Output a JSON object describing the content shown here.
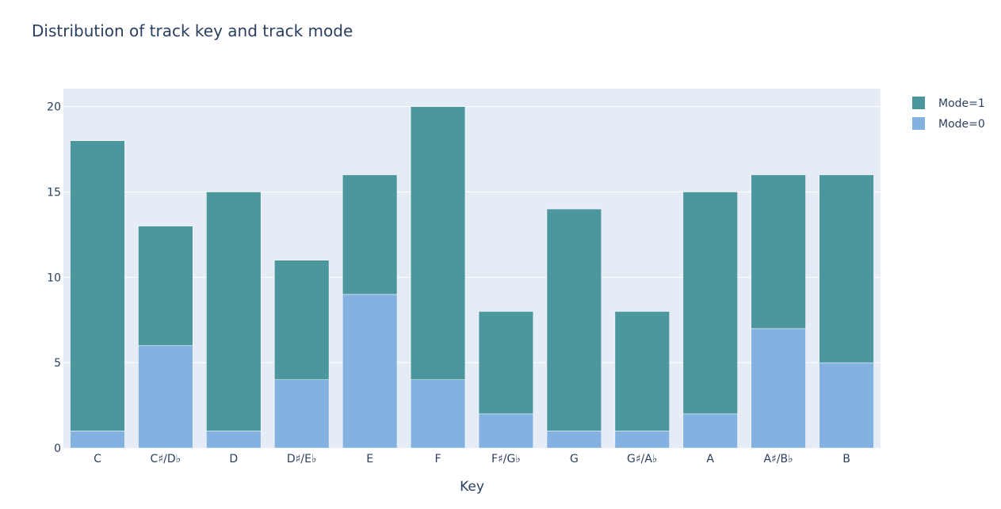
{
  "chart_data": {
    "type": "bar",
    "stacked": true,
    "title": "Distribution of track key and track mode",
    "xlabel": "Key",
    "ylabel": "",
    "categories": [
      "C",
      "C♯/D♭",
      "D",
      "D♯/E♭",
      "E",
      "F",
      "F♯/G♭",
      "G",
      "G♯/A♭",
      "A",
      "A♯/B♭",
      "B"
    ],
    "series": [
      {
        "name": "Mode=0",
        "color": "#83b2e1",
        "values": [
          1,
          6,
          1,
          4,
          9,
          4,
          2,
          1,
          1,
          2,
          7,
          5
        ]
      },
      {
        "name": "Mode=1",
        "color": "#4c979d",
        "values": [
          17,
          7,
          14,
          7,
          7,
          16,
          6,
          13,
          7,
          13,
          9,
          11
        ]
      }
    ],
    "legend_order": [
      "Mode=1",
      "Mode=0"
    ],
    "yticks": [
      0,
      5,
      10,
      15,
      20
    ],
    "ylim": [
      0,
      21.05
    ],
    "grid": true,
    "legend_position": "top-right",
    "plot_background": "#e5ecf6"
  }
}
